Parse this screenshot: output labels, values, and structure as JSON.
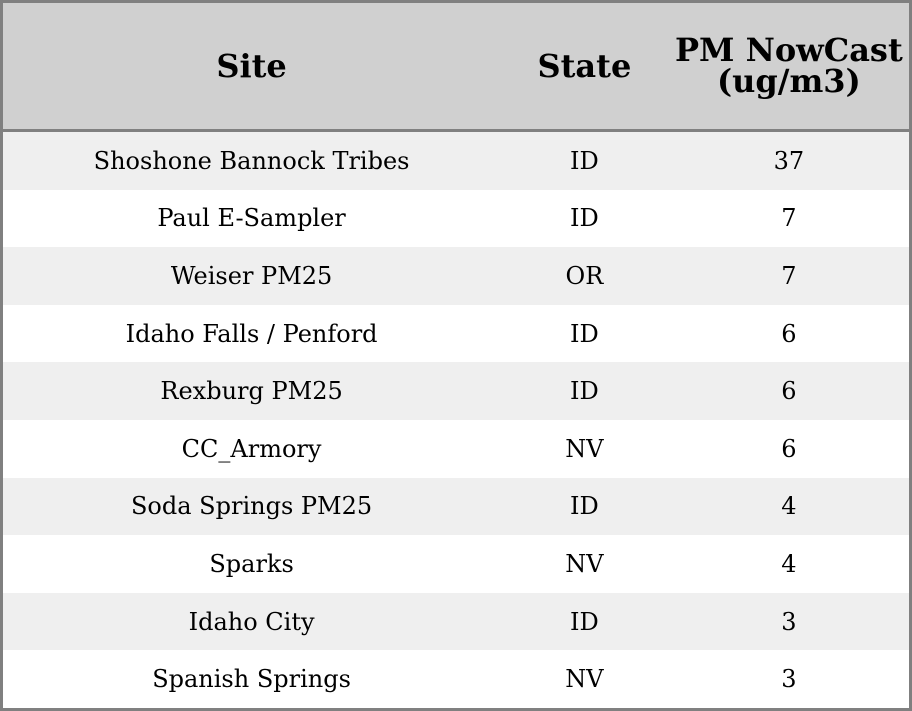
{
  "table": {
    "headers": [
      "Site",
      "State",
      "PM NowCast (ug/m3)"
    ],
    "rows": [
      [
        "Shoshone Bannock Tribes",
        "ID",
        "37"
      ],
      [
        "Paul E-Sampler",
        "ID",
        "7"
      ],
      [
        "Weiser PM25",
        "OR",
        "7"
      ],
      [
        "Idaho Falls / Penford",
        "ID",
        "6"
      ],
      [
        "Rexburg PM25",
        "ID",
        "6"
      ],
      [
        "CC_Armory",
        "NV",
        "6"
      ],
      [
        "Soda Springs PM25",
        "ID",
        "4"
      ],
      [
        "Sparks",
        "NV",
        "4"
      ],
      [
        "Idaho City",
        "ID",
        "3"
      ],
      [
        "Spanish Springs",
        "NV",
        "3"
      ]
    ]
  },
  "colors": {
    "header_bg": "#d0d0d0",
    "stripe": "#efefef",
    "border": "#808080"
  }
}
